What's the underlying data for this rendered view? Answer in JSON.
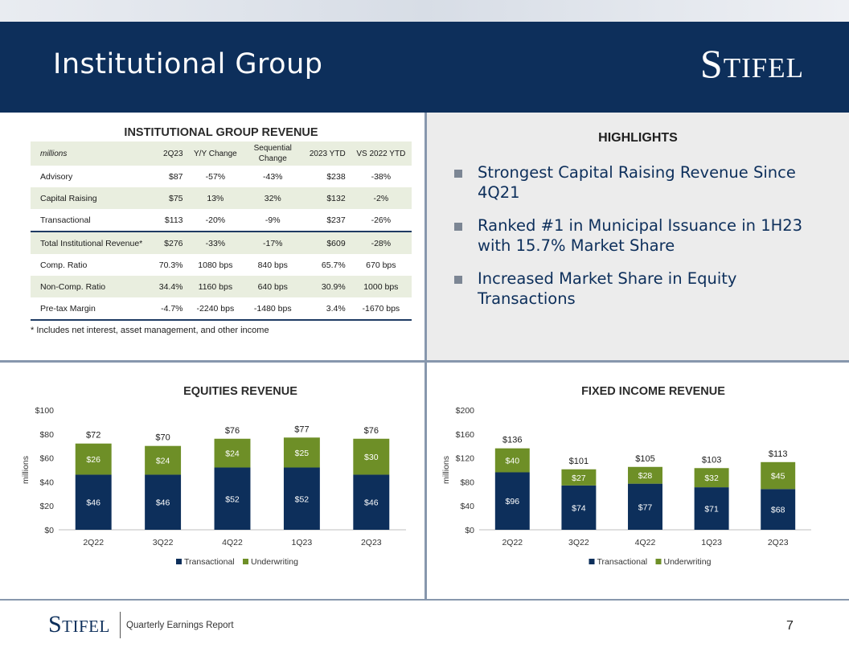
{
  "header": {
    "title": "Institutional Group",
    "brand": "Stifel"
  },
  "revenue_table": {
    "title": "INSTITUTIONAL GROUP REVENUE",
    "columns": [
      "millions",
      "2Q23",
      "Y/Y Change",
      "Sequential Change",
      "2023 YTD",
      "VS 2022 YTD"
    ],
    "rows": [
      [
        "Advisory",
        "$87",
        "-57%",
        "-43%",
        "$238",
        "-38%"
      ],
      [
        "Capital Raising",
        "$75",
        "13%",
        "32%",
        "$132",
        "-2%"
      ],
      [
        "Transactional",
        "$113",
        "-20%",
        "-9%",
        "$237",
        "-26%"
      ],
      [
        "Total Institutional Revenue*",
        "$276",
        "-33%",
        "-17%",
        "$609",
        "-28%"
      ],
      [
        "Comp. Ratio",
        "70.3%",
        "1080 bps",
        "840 bps",
        "65.7%",
        "670 bps"
      ],
      [
        "Non-Comp. Ratio",
        "34.4%",
        "1160 bps",
        "640 bps",
        "30.9%",
        "1000 bps"
      ],
      [
        "Pre-tax Margin",
        "-4.7%",
        "-2240 bps",
        "-1480 bps",
        "3.4%",
        "-1670 bps"
      ]
    ],
    "footnote": "* Includes net interest, asset management, and other income"
  },
  "highlights": {
    "title": "HIGHLIGHTS",
    "items": [
      "Strongest Capital Raising Revenue Since 4Q21",
      "Ranked #1 in Municipal Issuance in 1H23 with 15.7% Market Share",
      "Increased Market Share in Equity Transactions"
    ]
  },
  "colors": {
    "navy": "#0d2f5b",
    "green": "#6e8f27"
  },
  "chart_data": [
    {
      "type": "bar",
      "stacked": true,
      "title": "EQUITIES REVENUE",
      "ylabel": "millions",
      "ylim": [
        0,
        100
      ],
      "yticks": [
        0,
        20,
        40,
        60,
        80,
        100
      ],
      "tick_prefix": "$",
      "categories": [
        "2Q22",
        "3Q22",
        "4Q22",
        "1Q23",
        "2Q23"
      ],
      "series": [
        {
          "name": "Transactional",
          "color": "#0d2f5b",
          "values": [
            46,
            46,
            52,
            52,
            46
          ]
        },
        {
          "name": "Underwriting",
          "color": "#6e8f27",
          "values": [
            26,
            24,
            24,
            25,
            30
          ]
        }
      ],
      "totals": [
        72,
        70,
        76,
        77,
        76
      ]
    },
    {
      "type": "bar",
      "stacked": true,
      "title": "FIXED INCOME REVENUE",
      "ylabel": "millions",
      "ylim": [
        0,
        200
      ],
      "yticks": [
        0,
        40,
        80,
        120,
        160,
        200
      ],
      "tick_prefix": "$",
      "categories": [
        "2Q22",
        "3Q22",
        "4Q22",
        "1Q23",
        "2Q23"
      ],
      "series": [
        {
          "name": "Transactional",
          "color": "#0d2f5b",
          "values": [
            96,
            74,
            77,
            71,
            68
          ]
        },
        {
          "name": "Underwriting",
          "color": "#6e8f27",
          "values": [
            40,
            27,
            28,
            32,
            45
          ]
        }
      ],
      "totals": [
        136,
        101,
        105,
        103,
        113
      ]
    }
  ],
  "footer": {
    "brand": "Stifel",
    "text": "Quarterly Earnings Report",
    "page": "7"
  }
}
